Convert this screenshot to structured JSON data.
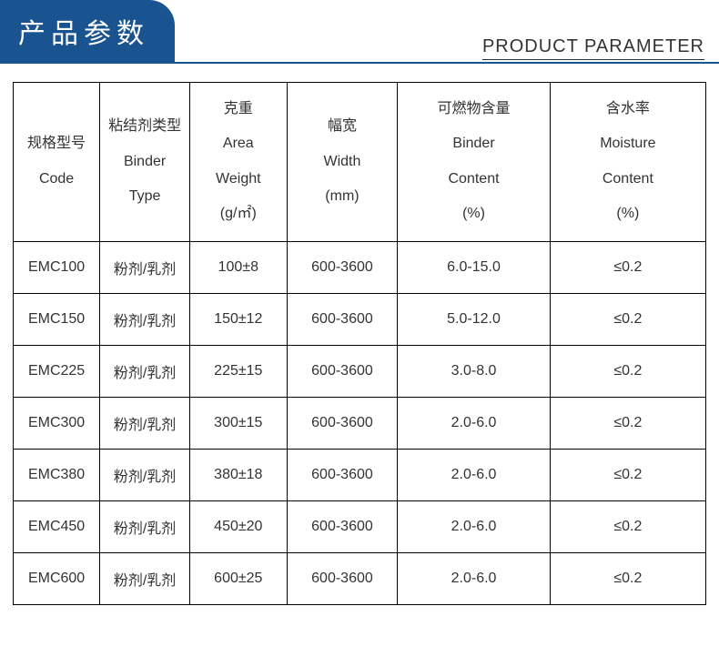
{
  "header": {
    "title_cn": "产品参数",
    "title_en": "PRODUCT PARAMETER"
  },
  "table": {
    "columns": [
      {
        "cn": "规格型号",
        "en": "Code",
        "unit": ""
      },
      {
        "cn": "粘结剂类型",
        "en": "Binder",
        "en2": "Type",
        "unit": ""
      },
      {
        "cn": "克重",
        "en": "Area",
        "en2": "Weight",
        "unit": "(g/㎡)"
      },
      {
        "cn": "幅宽",
        "en": "Width",
        "en2": "(mm)",
        "unit": ""
      },
      {
        "cn": "可燃物含量",
        "en": "Binder",
        "en2": "Content",
        "unit": "(%)"
      },
      {
        "cn": "含水率",
        "en": "Moisture",
        "en2": "Content",
        "unit": "(%)"
      }
    ],
    "rows": [
      [
        "EMC100",
        "粉剂/乳剂",
        "100±8",
        "600-3600",
        "6.0-15.0",
        "≤0.2"
      ],
      [
        "EMC150",
        "粉剂/乳剂",
        "150±12",
        "600-3600",
        "5.0-12.0",
        "≤0.2"
      ],
      [
        "EMC225",
        "粉剂/乳剂",
        "225±15",
        "600-3600",
        "3.0-8.0",
        "≤0.2"
      ],
      [
        "EMC300",
        "粉剂/乳剂",
        "300±15",
        "600-3600",
        "2.0-6.0",
        "≤0.2"
      ],
      [
        "EMC380",
        "粉剂/乳剂",
        "380±18",
        "600-3600",
        "2.0-6.0",
        "≤0.2"
      ],
      [
        "EMC450",
        "粉剂/乳剂",
        "450±20",
        "600-3600",
        "2.0-6.0",
        "≤0.2"
      ],
      [
        "EMC600",
        "粉剂/乳剂",
        "600±25",
        "600-3600",
        "2.0-6.0",
        "≤0.2"
      ]
    ]
  },
  "style": {
    "accent_color": "#1a5490",
    "border_color": "#000000",
    "text_color": "#333333",
    "background_color": "#ffffff"
  }
}
